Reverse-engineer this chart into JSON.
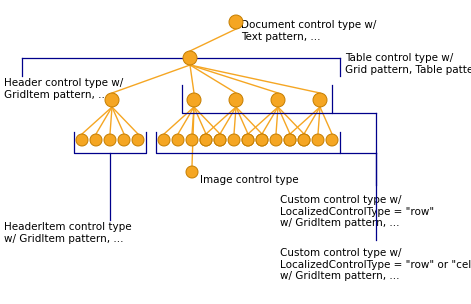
{
  "background_color": "#ffffff",
  "orange": "#F5A623",
  "orange_edge": "#C47D00",
  "navy": "#00008B",
  "font_size": 7.5,
  "font_family": "DejaVu Sans",
  "labels": {
    "document": "Document control type w/\nText pattern, ...",
    "header": "Header control type w/\nGridItem pattern, ...",
    "table": "Table control type w/\nGrid pattern, Table pattern, ...",
    "image": "Image control type",
    "custom_row": "Custom control type w/\nLocalizedControlType = \"row\"\nw/ GridItem pattern, ...",
    "custom_row_cell": "Custom control type w/\nLocalizedControlType = \"row\" or \"cell\"\nw/ GridItem pattern, ...",
    "headeritem": "HeaderItem control type\nw/ GridItem pattern, ..."
  }
}
